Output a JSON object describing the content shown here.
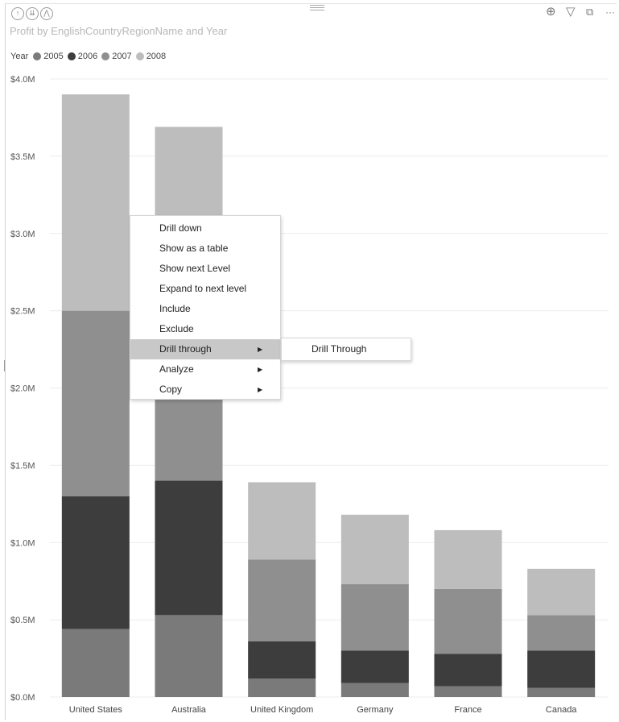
{
  "header": {
    "icons": [
      "drill-up-icon",
      "expand-all-down-icon",
      "drill-down-hierarchy-icon"
    ],
    "right_icons": [
      "drill-mode-icon",
      "filter-icon",
      "focus-mode-icon",
      "more-options-icon"
    ],
    "more_label": "···"
  },
  "colors": {
    "2005": "#7a7a7a",
    "2006": "#3d3d3d",
    "2007": "#8f8f8f",
    "2008": "#bdbdbd",
    "gridline": "#ececec"
  },
  "legend": {
    "title": "Year",
    "items": [
      "2005",
      "2006",
      "2007",
      "2008"
    ]
  },
  "chart_data": {
    "type": "bar",
    "stacked": true,
    "title": "Profit by EnglishCountryRegionName and Year",
    "categories": [
      "United States",
      "Australia",
      "United Kingdom",
      "Germany",
      "France",
      "Canada"
    ],
    "series": [
      {
        "name": "2005",
        "values": [
          0.44,
          0.53,
          0.12,
          0.09,
          0.07,
          0.06
        ]
      },
      {
        "name": "2006",
        "values": [
          0.86,
          0.87,
          0.24,
          0.21,
          0.21,
          0.24
        ]
      },
      {
        "name": "2007",
        "values": [
          1.2,
          1.2,
          0.53,
          0.43,
          0.42,
          0.23
        ]
      },
      {
        "name": "2008",
        "values": [
          1.4,
          1.09,
          0.5,
          0.45,
          0.38,
          0.3
        ]
      }
    ],
    "yticks": [
      "$0.0M",
      "$0.5M",
      "$1.0M",
      "$1.5M",
      "$2.0M",
      "$2.5M",
      "$3.0M",
      "$3.5M",
      "$4.0M"
    ],
    "ylim": [
      0,
      4.0
    ],
    "unit": "$M",
    "grid": true,
    "legend_position": "top-left"
  },
  "context_menu": {
    "items": [
      {
        "label": "Drill down",
        "submenu": false
      },
      {
        "label": "Show as a table",
        "submenu": false
      },
      {
        "label": "Show next Level",
        "submenu": false
      },
      {
        "label": "Expand to next level",
        "submenu": false
      },
      {
        "label": "Include",
        "submenu": false
      },
      {
        "label": "Exclude",
        "submenu": false
      },
      {
        "label": "Drill through",
        "submenu": true,
        "active": true
      },
      {
        "label": "Analyze",
        "submenu": true
      },
      {
        "label": "Copy",
        "submenu": true
      }
    ],
    "arrow": "▶",
    "submenu": {
      "items": [
        "Drill Through"
      ]
    }
  }
}
